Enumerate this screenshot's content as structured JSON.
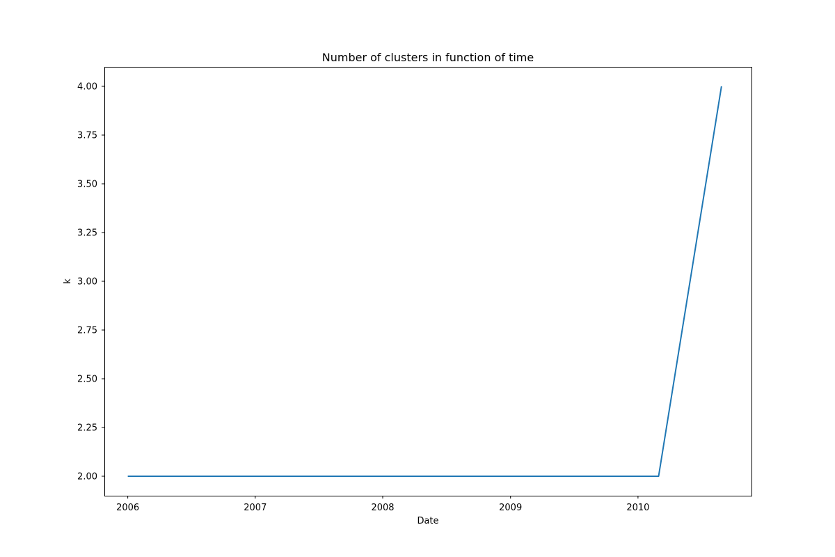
{
  "chart_data": {
    "type": "line",
    "title": "Number of clusters in function of time",
    "xlabel": "Date",
    "ylabel": "k",
    "x_tick_labels": [
      "2006",
      "2007",
      "2008",
      "2009",
      "2010"
    ],
    "y_tick_labels": [
      "2.00",
      "2.25",
      "2.50",
      "2.75",
      "3.00",
      "3.25",
      "3.50",
      "3.75",
      "4.00"
    ],
    "xlim": [
      "2005-10-26",
      "2010-11-22"
    ],
    "ylim": [
      1.9,
      4.1
    ],
    "grid": false,
    "legend": "none",
    "series": [
      {
        "color": "#1f77b4",
        "points": [
          {
            "x": "2006-01-01",
            "y": 2.0
          },
          {
            "x": "2010-03-01",
            "y": 2.0
          },
          {
            "x": "2010-08-28",
            "y": 4.0
          }
        ]
      }
    ]
  }
}
